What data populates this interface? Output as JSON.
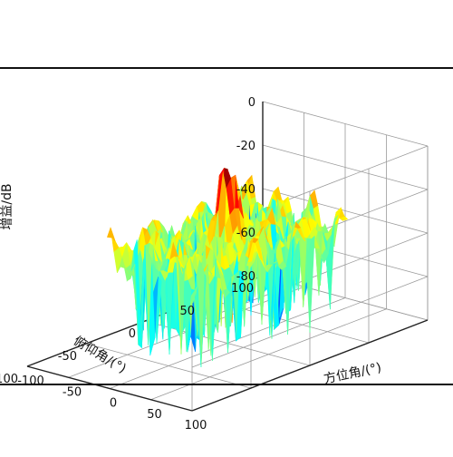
{
  "chart_data": {
    "type": "surface",
    "title": "",
    "zlabel": "增益/dB",
    "xlabel": "方位角/(°)",
    "ylabel": "俯仰角/(°)",
    "zlim": [
      -80,
      0
    ],
    "xlim": [
      -100,
      100
    ],
    "ylim": [
      -100,
      100
    ],
    "z_ticks": [
      "0",
      "-20",
      "-40",
      "-60",
      "-80"
    ],
    "x_ticks": [
      "-100",
      "-50",
      "0",
      "50",
      "100"
    ],
    "y_ticks": [
      "100",
      "50",
      "0",
      "-50",
      "-100"
    ],
    "grid": true,
    "colormap": "jet",
    "surface_range_deg": [
      -60,
      60
    ],
    "main_lobe": {
      "azimuth": 0,
      "elevation": 0,
      "gain_db": 0
    },
    "sidelobe_level_db": [
      -25,
      -45
    ],
    "floor_db": -80
  }
}
